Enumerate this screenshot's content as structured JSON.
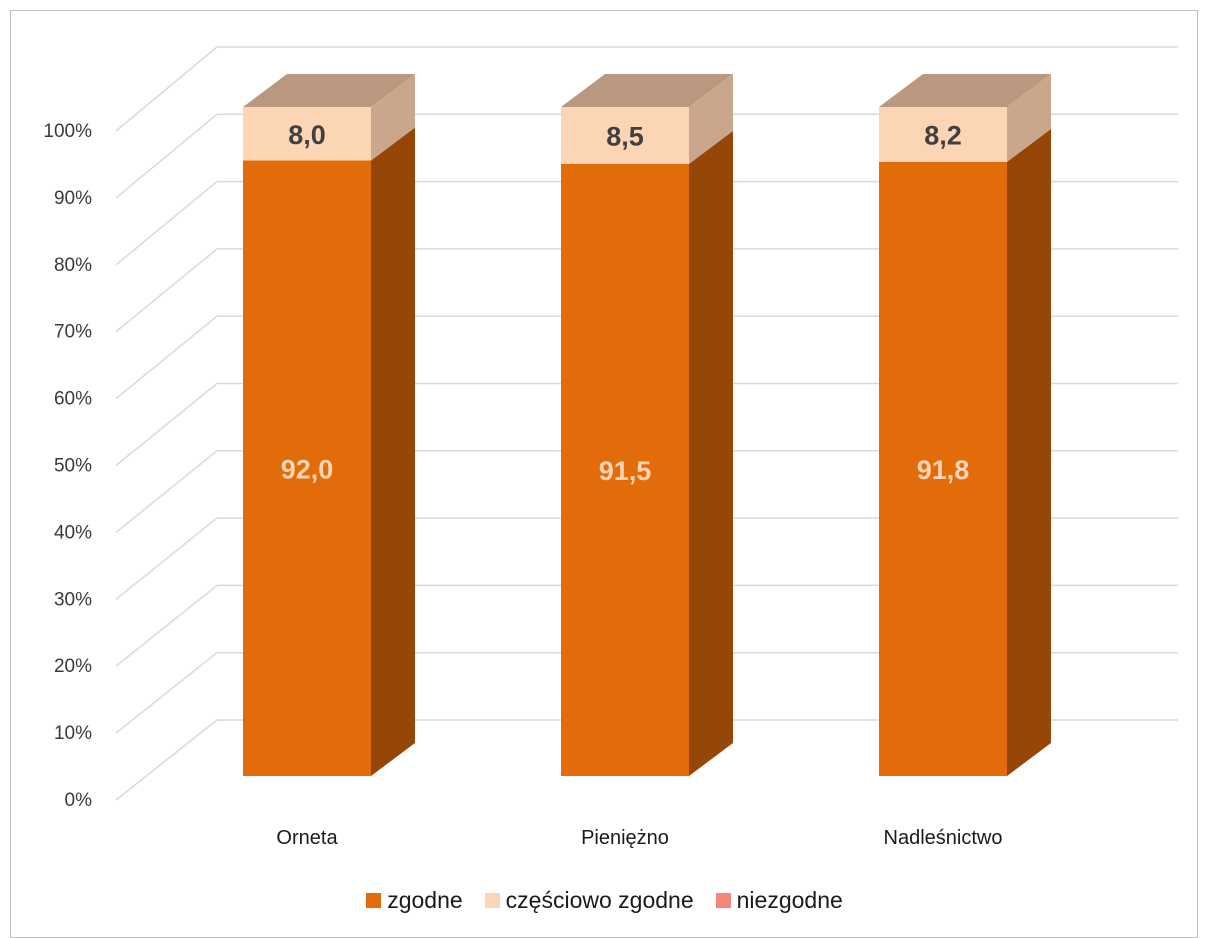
{
  "chart_data": {
    "type": "bar",
    "stacked": true,
    "percent_stacked": true,
    "three_d": true,
    "title": "",
    "xlabel": "",
    "ylabel": "",
    "ylim": [
      0,
      100
    ],
    "yticks": [
      "0%",
      "10%",
      "20%",
      "30%",
      "40%",
      "50%",
      "60%",
      "70%",
      "80%",
      "90%",
      "100%"
    ],
    "grid": true,
    "legend": "bottom",
    "categories": [
      "Orneta",
      "Pieniężno",
      "Nadleśnictwo"
    ],
    "series": [
      {
        "name": "zgodne",
        "values": [
          92.0,
          91.5,
          91.8
        ],
        "labels": [
          "92,0",
          "91,5",
          "91,8"
        ],
        "color": "#e36c0a",
        "label_color": "#fbd5b5"
      },
      {
        "name": "częściowo zgodne",
        "values": [
          8.0,
          8.5,
          8.2
        ],
        "labels": [
          "8,0",
          "8,5",
          "8,2"
        ],
        "color": "#fcd5b4",
        "label_color": "#404040"
      },
      {
        "name": "niezgodne",
        "values": [
          0,
          0,
          0
        ],
        "labels": [
          "",
          "",
          ""
        ],
        "color": "#f4877a",
        "label_color": "#404040"
      }
    ]
  }
}
